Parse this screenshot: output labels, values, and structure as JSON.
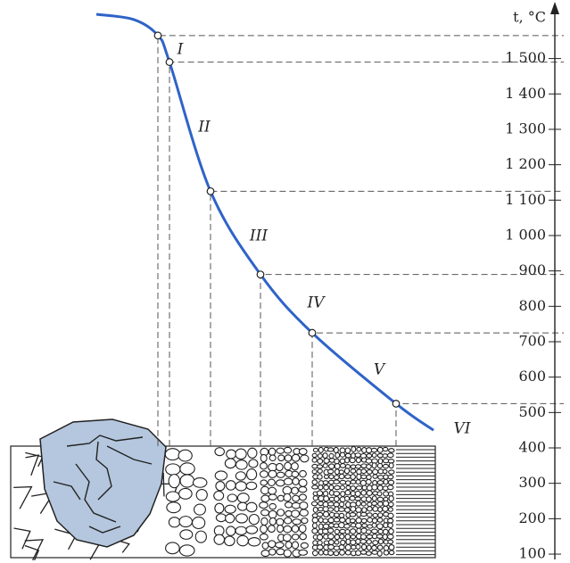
{
  "chart_data": {
    "type": "line",
    "axis_label": "t, °C",
    "zones": [
      "I",
      "II",
      "III",
      "IV",
      "V",
      "VI"
    ],
    "curve": {
      "color": "#2f63c8",
      "values": [
        1625,
        1610,
        1565,
        1490,
        1125,
        890,
        725,
        525,
        450
      ]
    },
    "points": {
      "values": [
        1565,
        1490,
        1125,
        890,
        725,
        525
      ]
    },
    "ylim": [
      90,
      1620
    ],
    "yticks": [
      100,
      200,
      300,
      400,
      500,
      600,
      700,
      800,
      900,
      {
        "value": 1000,
        "label": "1 000"
      },
      {
        "value": 1100,
        "label": "1 100"
      },
      {
        "value": 1200,
        "label": "1 200"
      },
      {
        "value": 1300,
        "label": "1 300"
      },
      {
        "value": 1400,
        "label": "1 400"
      },
      {
        "value": 1500,
        "label": "1 500"
      }
    ],
    "grain_color": "#b4c7de"
  }
}
